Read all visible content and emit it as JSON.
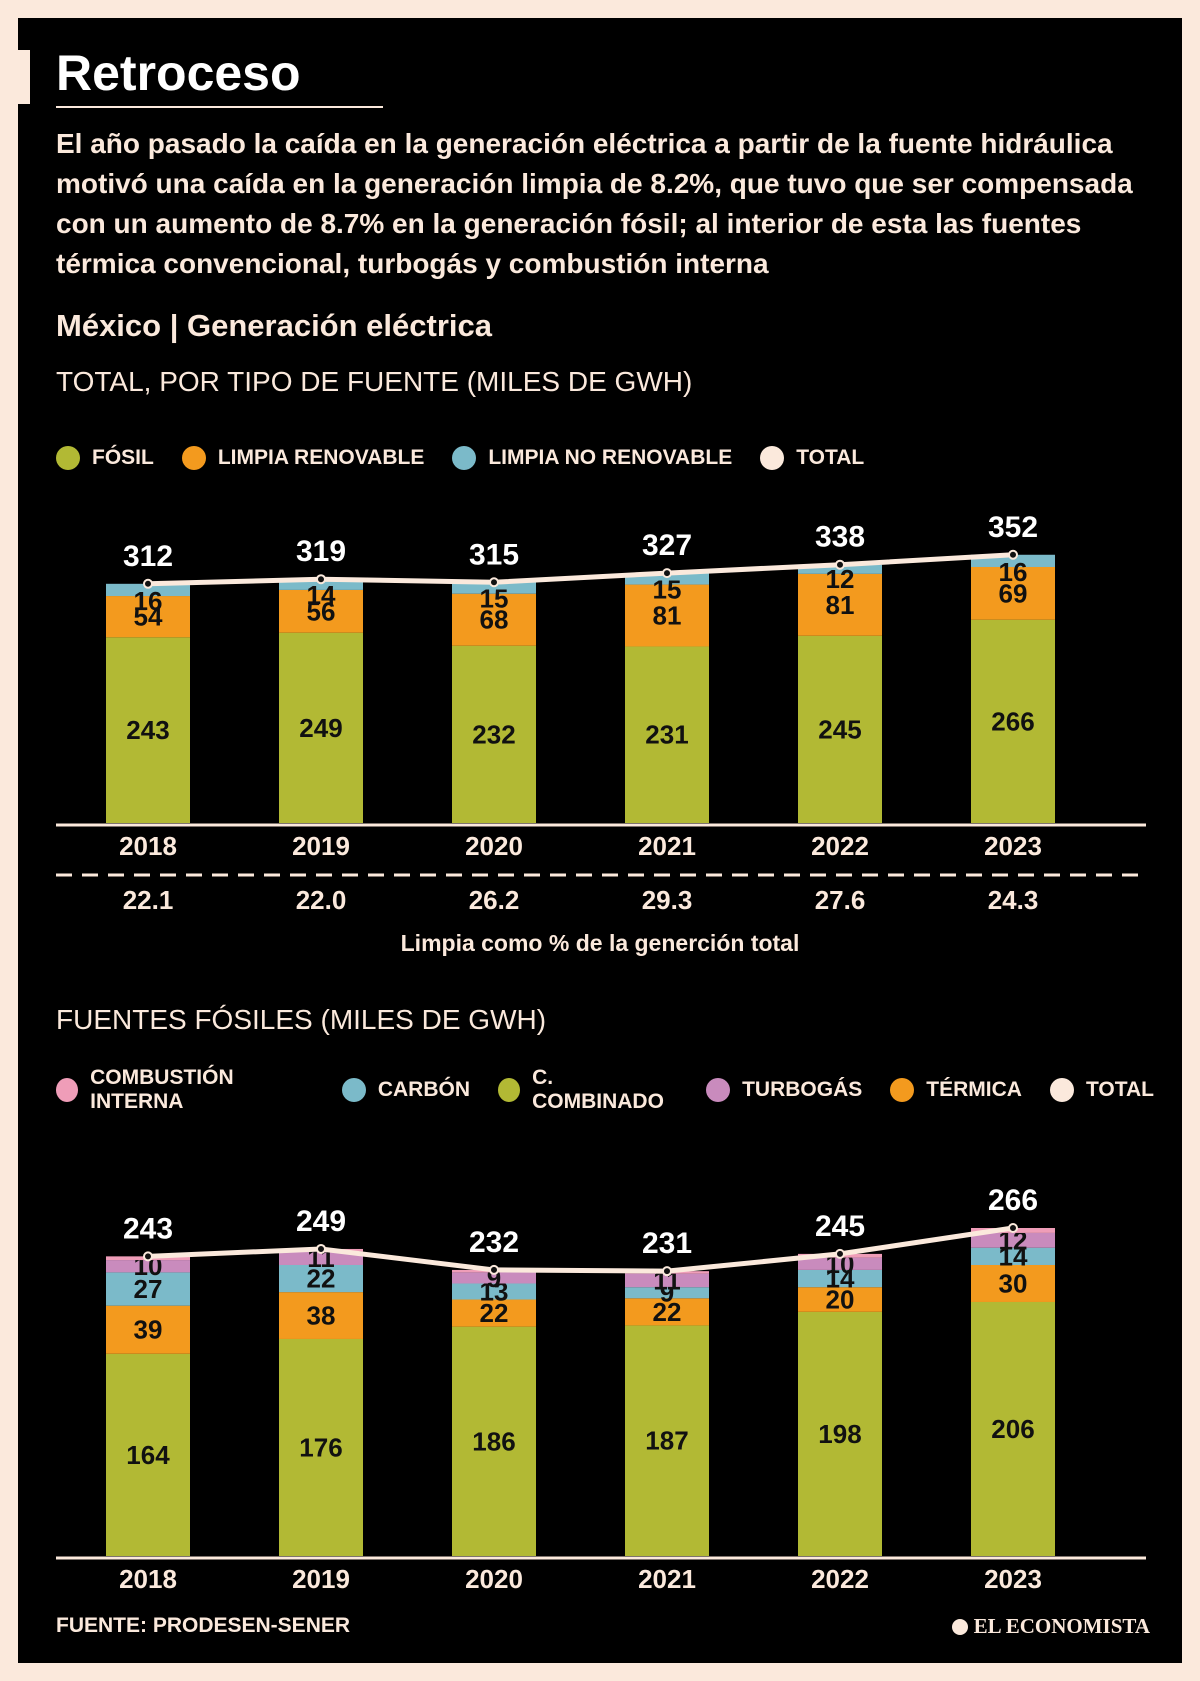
{
  "header": {
    "title": "Retroceso",
    "intro": "El año pasado la caída en la generación eléctrica a partir de la fuente hidráulica motivó una caída en la generación limpia de 8.2%, que tuvo que ser compensada con un aumento de 8.7% en la generación fósil; al interior de esta las fuentes térmica convencional, turbogás y combustión interna",
    "section": "México | Generación eléctrica"
  },
  "chart1": {
    "subtitle": "TOTAL, POR TIPO DE FUENTE (MILES DE GWH)",
    "legend": [
      {
        "label": "FÓSIL",
        "color": "#b2b934"
      },
      {
        "label": "LIMPIA RENOVABLE",
        "color": "#f39a1e"
      },
      {
        "label": "LIMPIA NO RENOVABLE",
        "color": "#7bbac9"
      },
      {
        "label": "TOTAL",
        "color": "#fbe9dc"
      }
    ]
  },
  "chart2": {
    "subtitle": "FUENTES FÓSILES (MILES DE GWH)",
    "legend": [
      {
        "label": "COMBUSTIÓN INTERNA",
        "color": "#ef9db8"
      },
      {
        "label": "CARBÓN",
        "color": "#7bbac9"
      },
      {
        "label": "C. COMBINADO",
        "color": "#b2b934"
      },
      {
        "label": "TURBOGÁS",
        "color": "#c98bbd"
      },
      {
        "label": "TÉRMICA",
        "color": "#f39a1e"
      },
      {
        "label": "TOTAL",
        "color": "#fbe9dc"
      }
    ]
  },
  "chart_data": [
    {
      "type": "bar",
      "stacked": true,
      "title": "TOTAL, POR TIPO DE FUENTE (MILES DE GWH)",
      "categories": [
        "2018",
        "2019",
        "2020",
        "2021",
        "2022",
        "2023"
      ],
      "series": [
        {
          "name": "FÓSIL",
          "color": "#b2b934",
          "values": [
            243,
            249,
            232,
            231,
            245,
            266
          ]
        },
        {
          "name": "LIMPIA RENOVABLE",
          "color": "#f39a1e",
          "values": [
            54,
            56,
            68,
            81,
            81,
            69
          ]
        },
        {
          "name": "LIMPIA NO RENOVABLE",
          "color": "#7bbac9",
          "values": [
            16,
            14,
            15,
            15,
            12,
            16
          ]
        }
      ],
      "total": {
        "name": "TOTAL",
        "values": [
          312,
          319,
          315,
          327,
          338,
          352
        ]
      },
      "secondary_row": {
        "label": "Limpia como % de la generción total",
        "values": [
          "22.1",
          "22.0",
          "26.2",
          "29.3",
          "27.6",
          "24.3"
        ]
      },
      "ylim": [
        0,
        352
      ]
    },
    {
      "type": "bar",
      "stacked": true,
      "title": "FUENTES FÓSILES (MILES DE GWH)",
      "categories": [
        "2018",
        "2019",
        "2020",
        "2021",
        "2022",
        "2023"
      ],
      "series": [
        {
          "name": "C. COMBINADO",
          "color": "#b2b934",
          "values": [
            164,
            176,
            186,
            187,
            198,
            206
          ]
        },
        {
          "name": "TÉRMICA",
          "color": "#f39a1e",
          "values": [
            39,
            38,
            22,
            22,
            20,
            30
          ]
        },
        {
          "name": "CARBÓN",
          "color": "#7bbac9",
          "values": [
            27,
            22,
            13,
            9,
            14,
            14
          ]
        },
        {
          "name": "TURBOGÁS",
          "color": "#c98bbd",
          "values": [
            10,
            11,
            9,
            11,
            10,
            12
          ]
        },
        {
          "name": "COMBUSTIÓN INTERNA",
          "color": "#ef9db8",
          "values": [
            3,
            2,
            2,
            2,
            3,
            4
          ]
        }
      ],
      "total": {
        "name": "TOTAL",
        "values": [
          243,
          249,
          232,
          231,
          245,
          266
        ]
      },
      "ylim": [
        0,
        266
      ]
    }
  ],
  "footer": {
    "source": "FUENTE: PRODESEN-SENER",
    "logo": "EL ECONOMISTA"
  }
}
